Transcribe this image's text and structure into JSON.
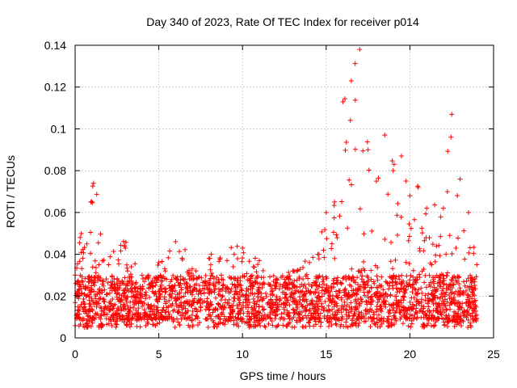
{
  "chart_data": {
    "type": "scatter",
    "title": "Day 340 of 2023, Rate Of TEC Index for receiver p014",
    "xlabel": "GPS time / hours",
    "ylabel": "ROTI / TECUs",
    "xlim": [
      0,
      25
    ],
    "ylim": [
      0,
      0.14
    ],
    "x_ticks": [
      0,
      5,
      10,
      15,
      20,
      25
    ],
    "x_tick_labels": [
      "0",
      "5",
      "10",
      "15",
      "20",
      "25"
    ],
    "y_ticks": [
      0,
      0.02,
      0.04,
      0.06,
      0.08,
      0.1,
      0.12,
      0.14
    ],
    "y_tick_labels": [
      "0",
      "0.02",
      "0.04",
      "0.06",
      "0.08",
      "0.1",
      "0.12",
      "0.14"
    ],
    "grid": true,
    "marker": "plus",
    "color": "#ff0000",
    "series": [
      {
        "name": "ROTI",
        "x_range": [
          0,
          24
        ],
        "baseline_band": [
          0.005,
          0.03
        ],
        "envelope": [
          [
            0,
            0.03
          ],
          [
            0.3,
            0.048
          ],
          [
            1.1,
            0.074
          ],
          [
            2,
            0.035
          ],
          [
            3,
            0.043
          ],
          [
            4,
            0.03
          ],
          [
            5,
            0.036
          ],
          [
            6,
            0.046
          ],
          [
            7,
            0.033
          ],
          [
            8,
            0.038
          ],
          [
            9.5,
            0.04
          ],
          [
            10,
            0.043
          ],
          [
            11,
            0.037
          ],
          [
            12,
            0.028
          ],
          [
            13,
            0.032
          ],
          [
            14,
            0.036
          ],
          [
            14.5,
            0.04
          ],
          [
            15,
            0.06
          ],
          [
            15.5,
            0.065
          ],
          [
            16,
            0.113
          ],
          [
            16.5,
            0.123
          ],
          [
            17,
            0.138
          ],
          [
            17.5,
            0.09
          ],
          [
            18,
            0.075
          ],
          [
            18.5,
            0.097
          ],
          [
            19,
            0.08
          ],
          [
            19.5,
            0.087
          ],
          [
            20,
            0.068
          ],
          [
            20.5,
            0.072
          ],
          [
            21,
            0.062
          ],
          [
            22,
            0.062
          ],
          [
            22.5,
            0.107
          ],
          [
            23,
            0.076
          ],
          [
            23.5,
            0.06
          ],
          [
            24,
            0.035
          ]
        ]
      }
    ]
  }
}
